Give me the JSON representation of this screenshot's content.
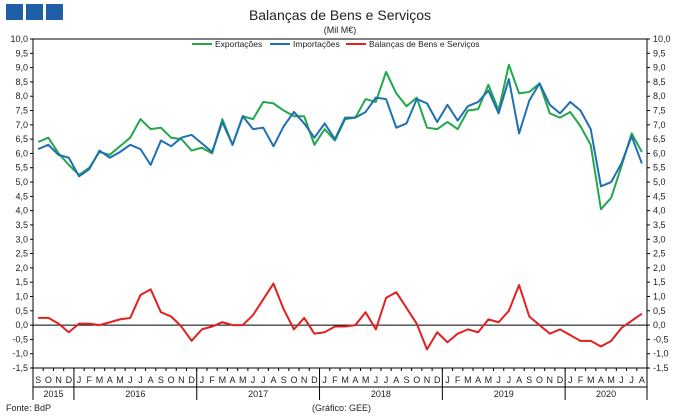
{
  "chart_data": {
    "type": "line",
    "title": "Balanças de Bens e Serviços",
    "subtitle": "(Mil M€)",
    "source": "Fonte: BdP",
    "credit": "(Gráfico: GEE)",
    "ylim": [
      -1.5,
      10.0
    ],
    "y_ticks": [
      "10,0",
      "9,5",
      "9,0",
      "8,5",
      "8,0",
      "7,5",
      "7,0",
      "6,5",
      "6,0",
      "5,5",
      "5,0",
      "4,5",
      "4,0",
      "3,5",
      "3,0",
      "2,5",
      "2,0",
      "1,5",
      "1,0",
      "0,5",
      "0,0",
      "-0,5",
      "-1,0",
      "-1,5"
    ],
    "legend_position": "top-center",
    "grid": false,
    "months": [
      "S",
      "O",
      "N",
      "D",
      "J",
      "F",
      "M",
      "A",
      "M",
      "J",
      "J",
      "A",
      "S",
      "O",
      "N",
      "D",
      "J",
      "F",
      "M",
      "A",
      "M",
      "J",
      "J",
      "A",
      "S",
      "O",
      "N",
      "D",
      "J",
      "F",
      "M",
      "A",
      "M",
      "J",
      "J",
      "A",
      "S",
      "O",
      "N",
      "D",
      "J",
      "F",
      "M",
      "A",
      "M",
      "J",
      "J",
      "A",
      "S",
      "O",
      "N",
      "D",
      "J",
      "F",
      "M",
      "A",
      "M",
      "J",
      "J",
      "A"
    ],
    "years": [
      {
        "label": "2015",
        "start": 0,
        "end": 3
      },
      {
        "label": "2016",
        "start": 4,
        "end": 15
      },
      {
        "label": "2017",
        "start": 16,
        "end": 27
      },
      {
        "label": "2018",
        "start": 28,
        "end": 39
      },
      {
        "label": "2019",
        "start": 40,
        "end": 51
      },
      {
        "label": "2020",
        "start": 52,
        "end": 59
      }
    ],
    "series": [
      {
        "name": "Exportações",
        "color": "#22a84a",
        "values": [
          6.4,
          6.55,
          6.0,
          5.6,
          5.25,
          5.5,
          6.05,
          5.95,
          6.25,
          6.55,
          7.2,
          6.85,
          6.9,
          6.55,
          6.5,
          6.1,
          6.2,
          6.0,
          7.2,
          6.3,
          7.3,
          7.2,
          7.8,
          7.75,
          7.5,
          7.3,
          7.3,
          6.3,
          6.85,
          6.45,
          7.2,
          7.25,
          7.9,
          7.8,
          8.85,
          8.1,
          7.65,
          7.95,
          6.9,
          6.85,
          7.1,
          6.85,
          7.5,
          7.55,
          8.4,
          7.5,
          9.1,
          8.1,
          8.15,
          8.45,
          7.4,
          7.25,
          7.45,
          6.95,
          6.3,
          4.05,
          4.45,
          5.55,
          6.7,
          6.05
        ]
      },
      {
        "name": "Importações",
        "color": "#1f6fb2",
        "values": [
          6.15,
          6.3,
          5.95,
          5.85,
          5.2,
          5.45,
          6.1,
          5.85,
          6.05,
          6.3,
          6.15,
          5.6,
          6.45,
          6.25,
          6.55,
          6.65,
          6.35,
          6.05,
          7.1,
          6.3,
          7.3,
          6.85,
          6.9,
          6.25,
          6.95,
          7.45,
          7.05,
          6.55,
          7.05,
          6.5,
          7.25,
          7.25,
          7.45,
          7.95,
          7.9,
          6.9,
          7.05,
          7.9,
          7.75,
          7.1,
          7.7,
          7.15,
          7.65,
          7.8,
          8.2,
          7.4,
          8.6,
          6.7,
          7.85,
          8.45,
          7.7,
          7.4,
          7.8,
          7.5,
          6.85,
          4.85,
          5.0,
          5.65,
          6.6,
          5.65
        ]
      },
      {
        "name": "Balanças de Bens e Serviços",
        "color": "#e32020",
        "values": [
          0.25,
          0.25,
          0.05,
          -0.25,
          0.05,
          0.05,
          0.0,
          0.1,
          0.2,
          0.25,
          1.05,
          1.25,
          0.45,
          0.3,
          -0.05,
          -0.55,
          -0.15,
          -0.05,
          0.1,
          0.0,
          0.0,
          0.35,
          0.9,
          1.45,
          0.55,
          -0.15,
          0.25,
          -0.3,
          -0.25,
          -0.05,
          -0.05,
          0.0,
          0.45,
          -0.15,
          0.95,
          1.15,
          0.6,
          0.05,
          -0.85,
          -0.25,
          -0.6,
          -0.3,
          -0.15,
          -0.25,
          0.2,
          0.1,
          0.5,
          1.4,
          0.3,
          0.0,
          -0.3,
          -0.15,
          -0.35,
          -0.55,
          -0.55,
          -0.75,
          -0.55,
          -0.1,
          0.15,
          0.4
        ]
      }
    ]
  }
}
